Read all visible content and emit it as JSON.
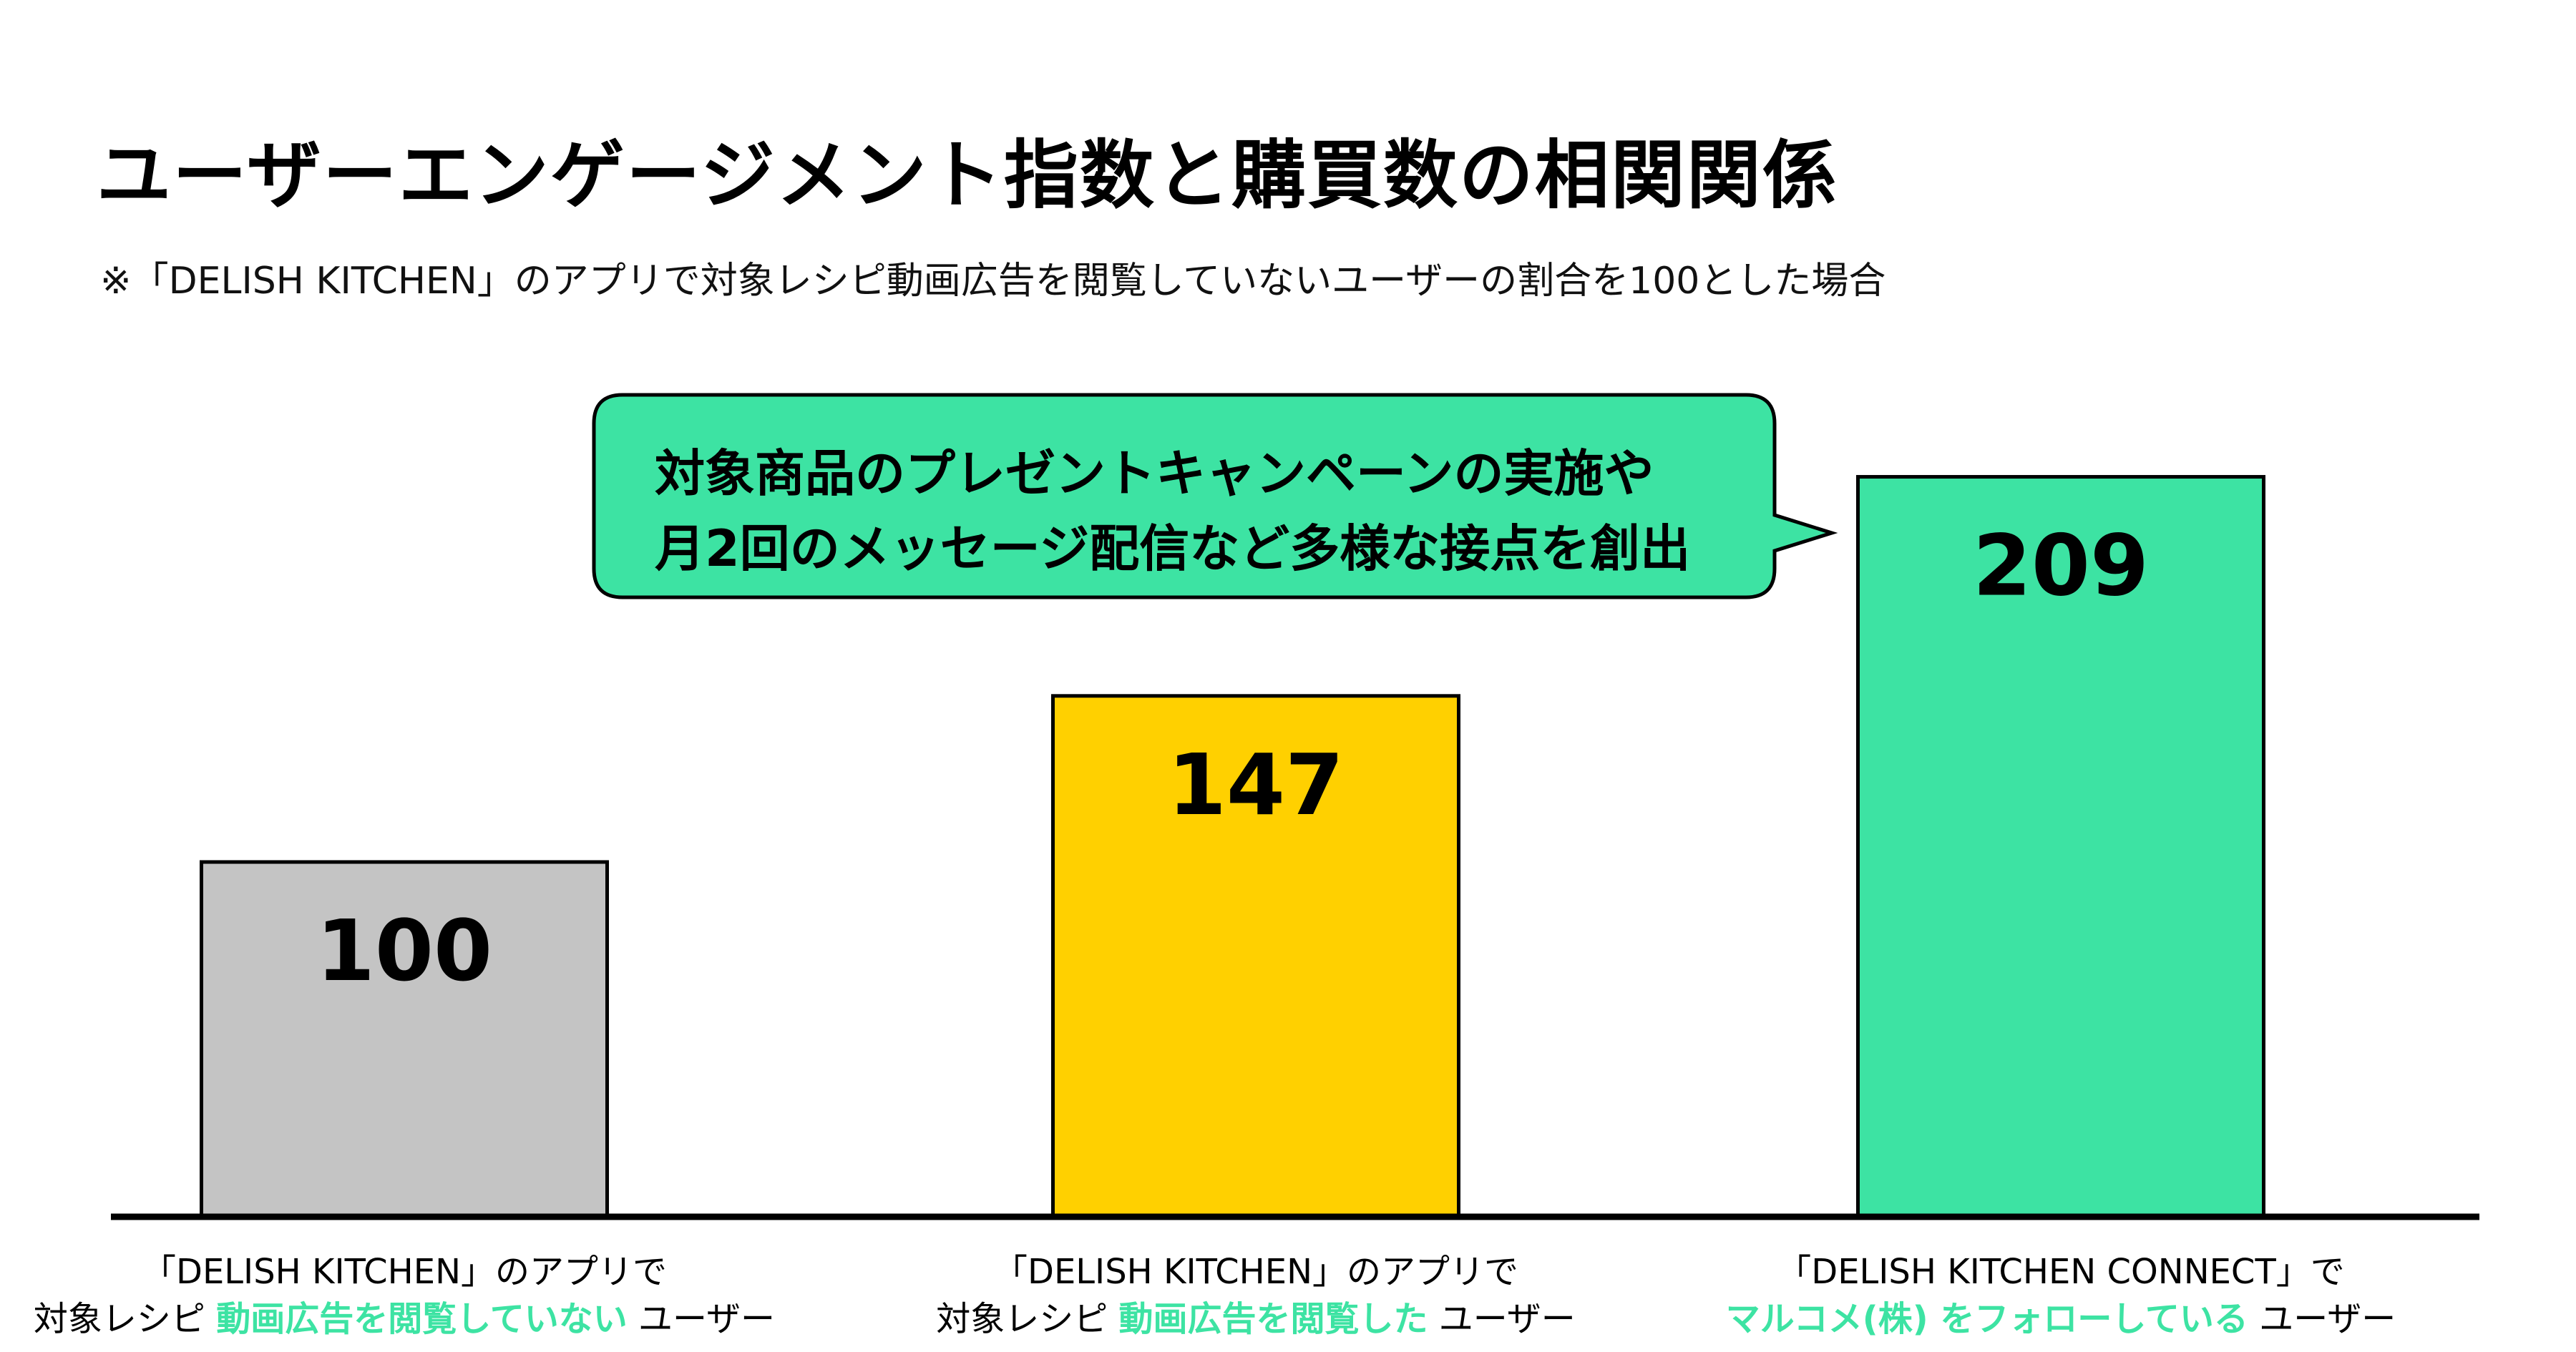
{
  "title": "ユーザーエンゲージメント指数と購買数の相関関係",
  "note": "※「DELISH KITCHEN」のアプリで対象レシピ動画広告を閲覧していないユーザーの割合を100とした場合",
  "callout": {
    "line1": "対象商品のプレゼントキャンペーンの実施や",
    "line2": "月2回のメッセージ配信など多様な接点を創出"
  },
  "colors": {
    "gray": "#c4c4c4",
    "yellow": "#ffd000",
    "green": "#3de3a3",
    "outline": "#000000"
  },
  "chart_data": {
    "type": "bar",
    "title": "ユーザーエンゲージメント指数と購買数の相関関係",
    "categories": [
      "「DELISH KITCHEN」のアプリで 対象レシピ 動画広告を閲覧していない ユーザー",
      "「DELISH KITCHEN」のアプリで 対象レシピ 動画広告を閲覧した ユーザー",
      "「DELISH KITCHEN CONNECT」で マルコメ(株) をフォローしている ユーザー"
    ],
    "values": [
      100,
      147,
      209
    ],
    "data_labels": [
      "100",
      "147",
      "209"
    ],
    "bar_colors": [
      "#c4c4c4",
      "#ffd000",
      "#3de3a3"
    ],
    "ylim": [
      0,
      240
    ],
    "grid": false,
    "legend": "none"
  },
  "category_labels": [
    {
      "line1": "「DELISH KITCHEN」のアプリで",
      "pre": "対象レシピ ",
      "highlight": "動画広告を閲覧していない",
      "post": " ユーザー"
    },
    {
      "line1": "「DELISH KITCHEN」のアプリで",
      "pre": "対象レシピ ",
      "highlight": "動画広告を閲覧した",
      "post": " ユーザー"
    },
    {
      "line1": "「DELISH KITCHEN CONNECT」で",
      "pre": "",
      "highlight": "マルコメ(株) をフォローしている",
      "post": " ユーザー"
    }
  ]
}
